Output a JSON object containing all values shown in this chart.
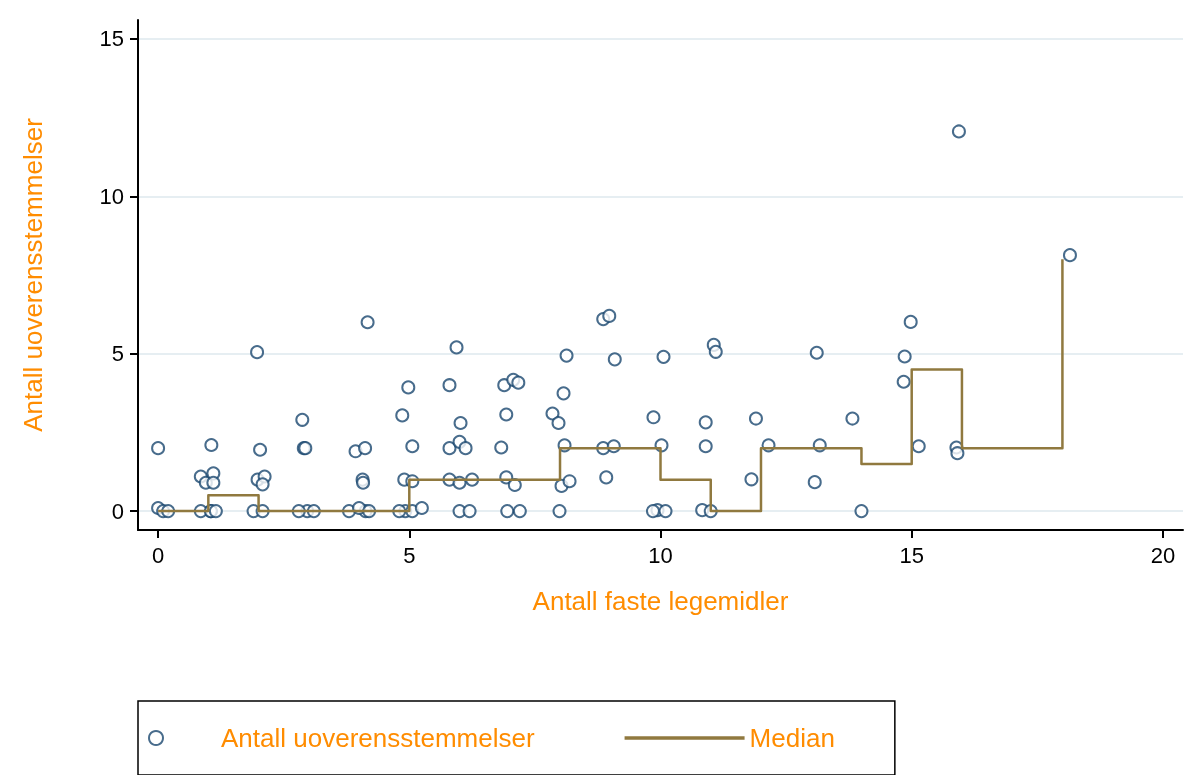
{
  "chart_data": {
    "type": "scatter",
    "xlabel": "Antall faste legemidler",
    "ylabel": "Antall uoverensstemmelser",
    "xlim": [
      -0.4,
      20.4
    ],
    "ylim": [
      -0.6,
      15.6
    ],
    "xticks": [
      0,
      5,
      10,
      15,
      20
    ],
    "yticks": [
      0,
      5,
      10,
      15
    ],
    "grid": "y",
    "legend": "bottom",
    "series": [
      {
        "name": "Antall uoverensstemmelser",
        "marker": "circle",
        "color": "#1a476f",
        "x": [
          0,
          0,
          0.1,
          0.2,
          1.06,
          0.85,
          0.95,
          1.1,
          1.1,
          1.05,
          0.85,
          1.05,
          1.15,
          1.97,
          2.03,
          1.98,
          2.12,
          2.08,
          1.9,
          2.08,
          2.87,
          2.9,
          2.93,
          2.97,
          3.1,
          2.8,
          4.17,
          3.93,
          4.12,
          4.07,
          4.08,
          4.13,
          3.8,
          4.0,
          4.2,
          4.86,
          4.98,
          5.06,
          4.9,
          5.06,
          4.92,
          4.8,
          5.06,
          5.25,
          5.94,
          5.8,
          6.02,
          5.8,
          6.0,
          6.12,
          5.8,
          6.0,
          6.25,
          6.0,
          6.2,
          6.89,
          7.07,
          7.17,
          6.93,
          6.83,
          6.93,
          7.1,
          6.95,
          7.2,
          8.13,
          8.07,
          7.85,
          7.97,
          8.09,
          8.03,
          8.19,
          7.99,
          8.86,
          8.98,
          9.09,
          8.86,
          9.07,
          8.92,
          10.06,
          9.86,
          10.02,
          9.94,
          9.85,
          10.1,
          11.06,
          11.1,
          10.9,
          10.9,
          10.83,
          11.0,
          15.94,
          18.15,
          14.98,
          13.11,
          14.86,
          14.84,
          11.9,
          13.82,
          12.15,
          13.17,
          15.14,
          15.89,
          15.91,
          11.81,
          13.07,
          14.0
        ],
        "values": [
          2,
          0.1,
          0,
          0,
          2.1,
          1.1,
          0.9,
          1.2,
          0.9,
          0,
          0,
          0,
          0,
          5.05,
          1.95,
          1.0,
          1.1,
          0.85,
          0,
          0,
          2.9,
          2.0,
          2.0,
          0,
          0,
          0,
          6.0,
          1.9,
          2.0,
          1.0,
          0.9,
          0,
          0,
          0.1,
          0,
          3.04,
          3.93,
          2.06,
          1.0,
          0.95,
          0,
          0,
          0,
          0.1,
          5.2,
          4.0,
          2.8,
          2.0,
          2.2,
          2.0,
          1.0,
          0.9,
          1.0,
          0,
          0,
          4.0,
          4.17,
          4.08,
          3.07,
          2.02,
          1.07,
          0.83,
          0,
          0,
          4.94,
          3.74,
          3.1,
          2.8,
          2.09,
          0.8,
          0.95,
          0,
          6.1,
          6.2,
          4.82,
          2.0,
          2.06,
          1.07,
          4.9,
          2.98,
          2.09,
          0.03,
          0,
          0,
          5.28,
          5.06,
          2.82,
          2.06,
          0.03,
          0,
          12.06,
          8.13,
          6.01,
          5.03,
          4.91,
          4.11,
          2.94,
          2.94,
          2.09,
          2.09,
          2.06,
          2.02,
          1.84,
          1.01,
          0.92,
          0
        ]
      },
      {
        "name": "Median",
        "type": "step",
        "marker": "none",
        "color": "#90793f",
        "x": [
          0,
          1,
          2,
          5,
          8,
          10,
          11,
          12,
          14,
          15,
          16,
          18
        ],
        "values": [
          0,
          0.5,
          0,
          1,
          2,
          1,
          0,
          2,
          1.5,
          4.5,
          2,
          8
        ]
      }
    ]
  }
}
